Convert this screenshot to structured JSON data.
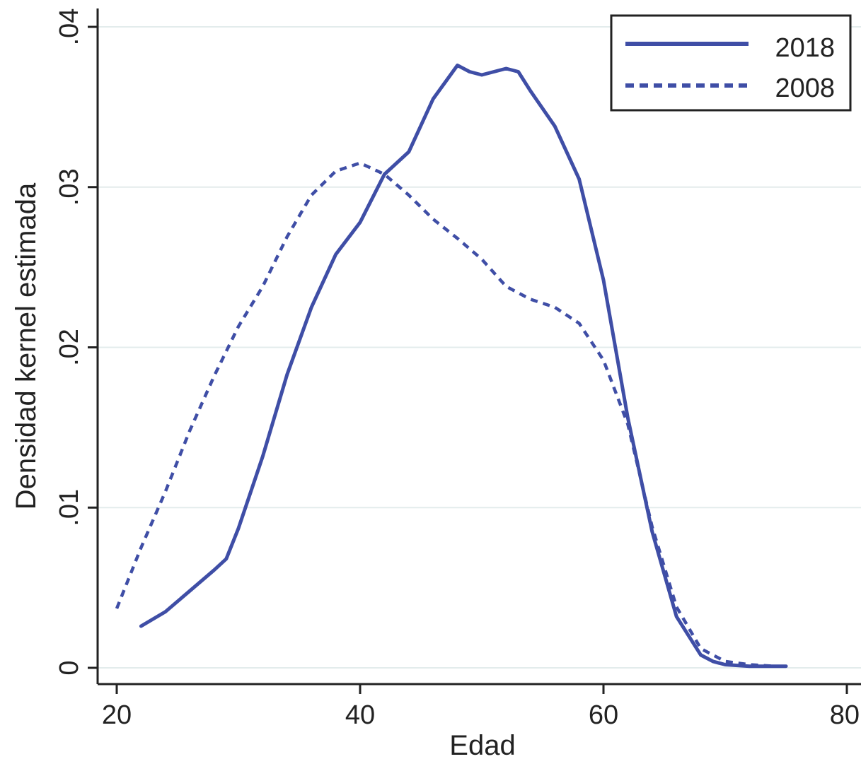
{
  "chart_data": {
    "type": "line",
    "xlabel": "Edad",
    "ylabel": "Densidad kernel estimada",
    "xlim": [
      20,
      80
    ],
    "ylim": [
      0,
      0.04
    ],
    "x_ticks": [
      20,
      40,
      60,
      80
    ],
    "x_tick_labels": [
      "20",
      "40",
      "60",
      "80"
    ],
    "y_ticks": [
      0,
      0.01,
      0.02,
      0.03,
      0.04
    ],
    "y_tick_labels": [
      "0",
      ".01",
      ".02",
      ".03",
      ".04"
    ],
    "grid": true,
    "legend_position": "top-right",
    "colors": {
      "series": "#3f4ea6",
      "grid": "#e3ecec",
      "axis": "#222222"
    },
    "series": [
      {
        "name": "2018",
        "style": "solid",
        "x": [
          22,
          24,
          26,
          28,
          29,
          30,
          32,
          34,
          36,
          38,
          40,
          42,
          44,
          46,
          48,
          49,
          50,
          52,
          53,
          54,
          56,
          58,
          60,
          62,
          64,
          66,
          68,
          69,
          70,
          72,
          75
        ],
        "y": [
          0.0026,
          0.0035,
          0.0048,
          0.0061,
          0.0068,
          0.0087,
          0.0132,
          0.0183,
          0.0225,
          0.0258,
          0.0278,
          0.0308,
          0.0322,
          0.0355,
          0.0376,
          0.0372,
          0.037,
          0.0374,
          0.0372,
          0.036,
          0.0338,
          0.0305,
          0.0242,
          0.0156,
          0.0085,
          0.0032,
          0.0008,
          0.0004,
          0.0002,
          0.0001,
          0.0001
        ]
      },
      {
        "name": "2008",
        "style": "dashed",
        "x": [
          20,
          22,
          24,
          26,
          28,
          30,
          32,
          34,
          36,
          38,
          40,
          42,
          44,
          46,
          48,
          50,
          52,
          54,
          56,
          58,
          60,
          62,
          64,
          66,
          68,
          70,
          72,
          74
        ],
        "y": [
          0.0037,
          0.0075,
          0.011,
          0.0148,
          0.0182,
          0.0213,
          0.0238,
          0.0269,
          0.0295,
          0.031,
          0.0315,
          0.0308,
          0.0295,
          0.028,
          0.0268,
          0.0255,
          0.0238,
          0.023,
          0.0225,
          0.0215,
          0.0192,
          0.0152,
          0.0088,
          0.0038,
          0.0012,
          0.0004,
          0.0002,
          0.0001
        ]
      }
    ]
  }
}
